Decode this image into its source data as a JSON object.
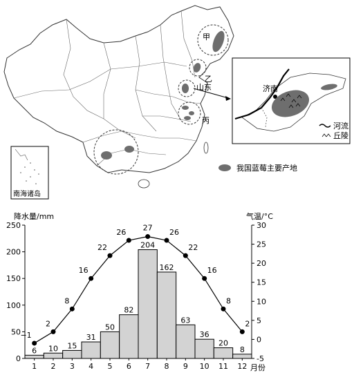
{
  "map": {
    "markers": {
      "jia": "甲",
      "yi": "乙",
      "bing": "丙",
      "shandong": "山东"
    },
    "inset": {
      "jinan": "济南",
      "legend_river": "河流",
      "legend_hill": "丘陵"
    },
    "south_sea_label": "南海诸岛",
    "legend_label": "我国蓝莓主要产地",
    "colors": {
      "production_area": "#6e6e6e",
      "border": "#333333"
    }
  },
  "chart_data": {
    "type": "bar",
    "categories": [
      "1",
      "2",
      "3",
      "4",
      "5",
      "6",
      "7",
      "8",
      "9",
      "10",
      "11",
      "12"
    ],
    "series": [
      {
        "kind": "bar",
        "values": [
          6,
          10,
          15,
          31,
          50,
          82,
          204,
          162,
          63,
          36,
          20,
          8
        ]
      },
      {
        "kind": "line",
        "values": [
          -1,
          2,
          8,
          16,
          22,
          26,
          27,
          26,
          22,
          16,
          8,
          2
        ]
      }
    ],
    "xlabel": "月份",
    "ylabel_left": "降水量/mm",
    "ylabel_right": "气温/°C",
    "ylim_left": [
      0,
      250
    ],
    "ylim_right": [
      -5,
      30
    ],
    "ticks_left": [
      "0",
      "50",
      "100",
      "150",
      "200",
      "250"
    ],
    "ticks_right": [
      "-5",
      "0",
      "5",
      "10",
      "15",
      "20",
      "25",
      "30"
    ],
    "colors": {
      "bar_fill": "#d3d3d3",
      "bar_stroke": "#000000",
      "line": "#000000"
    }
  }
}
